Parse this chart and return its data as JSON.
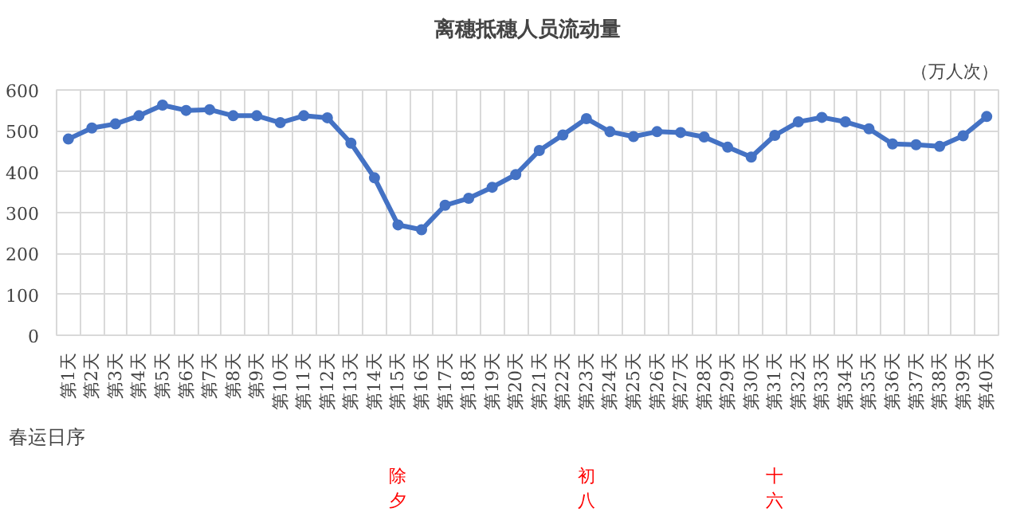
{
  "chart_data": {
    "type": "line",
    "title": "离穗抵穗人员流动量",
    "ylabel": "（万人次）",
    "xlabel": "春运日序",
    "categories": [
      "第1天",
      "第2天",
      "第3天",
      "第4天",
      "第5天",
      "第6天",
      "第7天",
      "第8天",
      "第9天",
      "第10天",
      "第11天",
      "第12天",
      "第13天",
      "第14天",
      "第15天",
      "第16天",
      "第17天",
      "第18天",
      "第19天",
      "第20天",
      "第21天",
      "第22天",
      "第23天",
      "第24天",
      "第25天",
      "第26天",
      "第27天",
      "第28天",
      "第29天",
      "第30天",
      "第31天",
      "第32天",
      "第33天",
      "第34天",
      "第35天",
      "第36天",
      "第37天",
      "第38天",
      "第39天",
      "第40天"
    ],
    "series": [
      {
        "color": "#4472c4",
        "values": [
          480,
          507,
          517,
          537,
          563,
          550,
          552,
          537,
          537,
          520,
          537,
          532,
          470,
          385,
          270,
          258,
          318,
          335,
          362,
          393,
          452,
          490,
          530,
          498,
          486,
          498,
          496,
          485,
          460,
          436,
          489,
          522,
          533,
          522,
          505,
          468,
          466,
          462,
          488,
          535
        ]
      }
    ],
    "ylim": [
      0,
      600
    ],
    "yticks": [
      0,
      100,
      200,
      300,
      400,
      500,
      600
    ],
    "grid": true,
    "marker": "circle",
    "line_style": "solid",
    "annotations": [
      "除夕",
      "初八",
      "十六"
    ]
  }
}
